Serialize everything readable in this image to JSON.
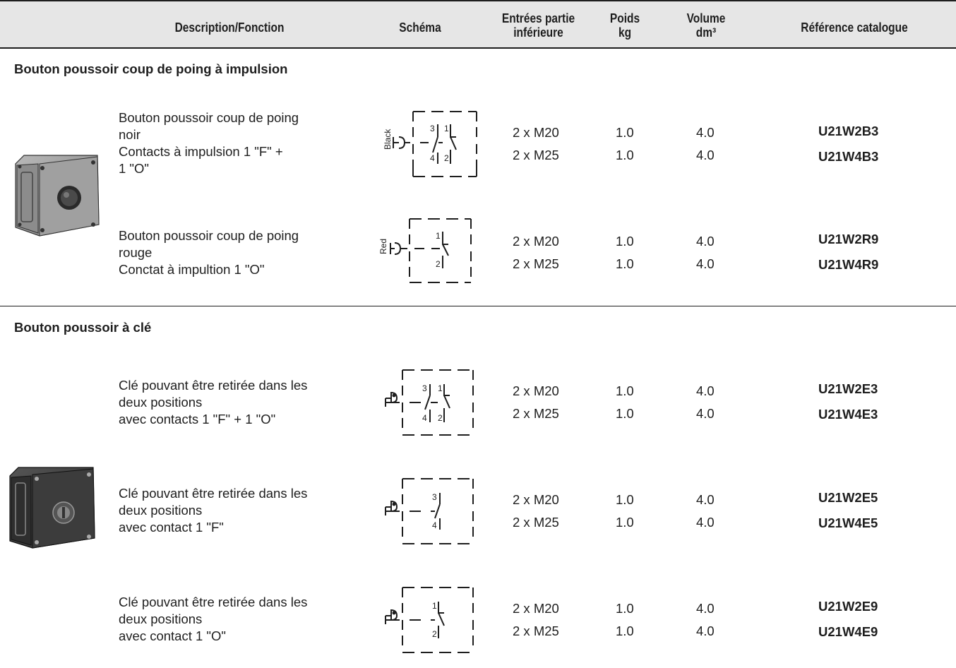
{
  "header": {
    "col_description": "Description/Fonction",
    "col_schema": "Schéma",
    "col_entries_1": "Entrées partie",
    "col_entries_2": "inférieure",
    "col_weight_1": "Poids",
    "col_weight_2": "kg",
    "col_volume_1": "Volume",
    "col_volume_2": "dm³",
    "col_reference": "Référence catalogue"
  },
  "sections": [
    {
      "title": "Bouton poussoir coup de poing à impulsion",
      "products": [
        {
          "desc_lines": [
            "Bouton poussoir coup de poing",
            "noir",
            "Contacts à impulsion 1 \"F\" +",
            "1 \"O\""
          ],
          "schema_label": "Black",
          "entries": [
            "2 x M20",
            "2 x M25"
          ],
          "weights": [
            "1.0",
            "1.0"
          ],
          "volumes": [
            "4.0",
            "4.0"
          ],
          "refs": [
            "U21W2B3",
            "U21W4B3"
          ]
        },
        {
          "desc_lines": [
            "Bouton poussoir coup de poing",
            "rouge",
            "Conctat à impultion 1 \"O\""
          ],
          "schema_label": "Red",
          "entries": [
            "2 x M20",
            "2 x M25"
          ],
          "weights": [
            "1.0",
            "1.0"
          ],
          "volumes": [
            "4.0",
            "4.0"
          ],
          "refs": [
            "U21W2R9",
            "U21W4R9"
          ]
        }
      ]
    },
    {
      "title": "Bouton poussoir à clé",
      "products": [
        {
          "desc_lines": [
            "Clé pouvant être retirée dans les",
            "deux positions",
            "avec contacts 1 \"F\" + 1 \"O\""
          ],
          "entries": [
            "2 x M20",
            "2 x M25"
          ],
          "weights": [
            "1.0",
            "1.0"
          ],
          "volumes": [
            "4.0",
            "4.0"
          ],
          "refs": [
            "U21W2E3",
            "U21W4E3"
          ]
        },
        {
          "desc_lines": [
            "Clé pouvant être retirée dans les",
            "deux positions",
            "avec contact 1 \"F\""
          ],
          "entries": [
            "2 x M20",
            "2 x M25"
          ],
          "weights": [
            "1.0",
            "1.0"
          ],
          "volumes": [
            "4.0",
            "4.0"
          ],
          "refs": [
            "U21W2E5",
            "U21W4E5"
          ]
        },
        {
          "desc_lines": [
            "Clé pouvant être retirée dans les",
            "deux positions",
            "avec contact 1 \"O\""
          ],
          "entries": [
            "2 x M20",
            "2 x M25"
          ],
          "weights": [
            "1.0",
            "1.0"
          ],
          "volumes": [
            "4.0",
            "4.0"
          ],
          "refs": [
            "U21W2E9",
            "U21W4E9"
          ]
        }
      ]
    }
  ],
  "contact_numbers": {
    "no_top": "3",
    "no_bottom": "4",
    "nc_top": "1",
    "nc_bottom": "2"
  }
}
